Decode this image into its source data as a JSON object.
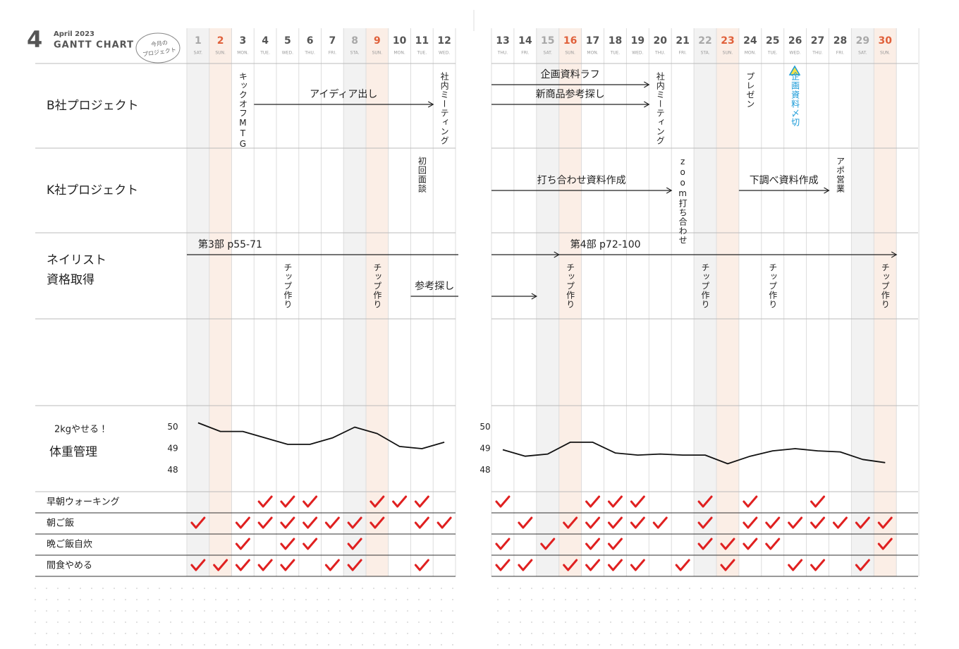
{
  "header": {
    "month": "4",
    "subtitle": "April 2023",
    "title": "GANTT CHART",
    "badge": [
      "今月の",
      "プロジェクト"
    ]
  },
  "days": [
    {
      "day": 1,
      "dow": "SAT.",
      "shade": "#f2f2f2",
      "color": "#a8a8a8"
    },
    {
      "day": 2,
      "dow": "SUN.",
      "shade": "#fbeee6",
      "color": "#e0603a"
    },
    {
      "day": 3,
      "dow": "MON."
    },
    {
      "day": 4,
      "dow": "TUE."
    },
    {
      "day": 5,
      "dow": "WED."
    },
    {
      "day": 6,
      "dow": "THU."
    },
    {
      "day": 7,
      "dow": "FRI."
    },
    {
      "day": 8,
      "dow": "STA.",
      "shade": "#f2f2f2",
      "color": "#a8a8a8"
    },
    {
      "day": 9,
      "dow": "SUN.",
      "shade": "#fbeee6",
      "color": "#e0603a"
    },
    {
      "day": 10,
      "dow": "MON."
    },
    {
      "day": 11,
      "dow": "TUE."
    },
    {
      "day": 12,
      "dow": "WED."
    },
    {
      "day": 13,
      "dow": "THU."
    },
    {
      "day": 14,
      "dow": "FRI."
    },
    {
      "day": 15,
      "dow": "SAT.",
      "shade": "#f2f2f2",
      "color": "#a8a8a8"
    },
    {
      "day": 16,
      "dow": "SUN.",
      "shade": "#fbeee6",
      "color": "#e0603a"
    },
    {
      "day": 17,
      "dow": "MON."
    },
    {
      "day": 18,
      "dow": "TUE."
    },
    {
      "day": 19,
      "dow": "WED."
    },
    {
      "day": 20,
      "dow": "THU."
    },
    {
      "day": 21,
      "dow": "FRI."
    },
    {
      "day": 22,
      "dow": "STA.",
      "shade": "#f2f2f2",
      "color": "#a8a8a8"
    },
    {
      "day": 23,
      "dow": "SUN.",
      "shade": "#fbeee6",
      "color": "#e0603a"
    },
    {
      "day": 24,
      "dow": "MON."
    },
    {
      "day": 25,
      "dow": "TUE."
    },
    {
      "day": 26,
      "dow": "WED."
    },
    {
      "day": 27,
      "dow": "THU."
    },
    {
      "day": 28,
      "dow": "FRI."
    },
    {
      "day": 29,
      "dow": "SAT.",
      "shade": "#f2f2f2",
      "color": "#a8a8a8"
    },
    {
      "day": 30,
      "dow": "SUN.",
      "shade": "#fbeee6",
      "color": "#e0603a"
    }
  ],
  "projects": [
    {
      "name": [
        "B社プロジェクト"
      ],
      "tasks": [
        {
          "text": "キックオフMTG",
          "day": 3
        },
        {
          "text": "アイディア出し",
          "from": 4,
          "to": 12
        },
        {
          "text": "社内ミーティング",
          "day": 12
        },
        {
          "text": "企画資料ラフ",
          "from": 13,
          "to": 20
        },
        {
          "text": "新商品参考探し",
          "from": 13,
          "to": 20
        },
        {
          "text": "社内ミーティング",
          "day": 20
        },
        {
          "text": "プレゼン",
          "day": 24
        },
        {
          "text": "企画資料〆切",
          "day": 26,
          "color": "#1a9bd8"
        }
      ]
    },
    {
      "name": [
        "K社プロジェクト"
      ],
      "tasks": [
        {
          "text": "初回面談",
          "day": 11
        },
        {
          "text": "打ち合わせ資料作成",
          "from": 13,
          "to": 21
        },
        {
          "text": "zoom打ち合わせ",
          "day": 21
        },
        {
          "text": "下調べ資料作成",
          "from": 24,
          "to": 28
        },
        {
          "text": "アポ営業",
          "day": 28
        }
      ]
    },
    {
      "name": [
        "ネイリスト",
        "資格取得"
      ],
      "tasks": [
        {
          "text": "第3部 p55-71",
          "from": 1,
          "to": 13,
          "arrow": false
        },
        {
          "text": "チップ作り",
          "day": 5
        },
        {
          "text": "チップ作り",
          "day": 9
        },
        {
          "text": "参考探し",
          "from": 11,
          "to": 13,
          "arrow": false
        },
        {
          "from": 13,
          "to": 16
        },
        {
          "text": "第4部 p72-100",
          "from": 16,
          "to": 31
        },
        {
          "from": 13,
          "to": 15
        },
        {
          "text": "チップ作り",
          "day": 16
        },
        {
          "text": "チップ作り",
          "day": 22
        },
        {
          "text": "チップ作り",
          "day": 25
        },
        {
          "text": "チップ作り",
          "day": 30
        }
      ]
    }
  ],
  "weight": {
    "goal": "2kgやせる！",
    "label": "体重管理",
    "ylim": [
      47,
      51
    ],
    "yticks": [
      50,
      49,
      48
    ],
    "values": [
      50.2,
      49.8,
      49.8,
      49.5,
      49.2,
      49.2,
      49.5,
      50.0,
      49.7,
      49.1,
      49.0,
      49.3,
      48.95,
      48.65,
      48.75,
      49.3,
      49.3,
      48.8,
      48.7,
      48.75,
      48.7,
      48.7,
      48.3,
      48.65,
      48.9,
      49.0,
      48.9,
      48.85,
      48.5,
      48.35
    ]
  },
  "habits": [
    {
      "name": "早朝ウォーキング",
      "days": [
        4,
        5,
        6,
        9,
        10,
        11,
        13,
        17,
        18,
        19,
        22,
        24,
        27
      ]
    },
    {
      "name": "朝ご飯",
      "days": [
        1,
        3,
        4,
        5,
        6,
        7,
        8,
        9,
        11,
        12,
        14,
        16,
        17,
        18,
        19,
        20,
        22,
        24,
        25,
        26,
        27,
        28,
        29,
        30
      ]
    },
    {
      "name": "晩ご飯自炊",
      "days": [
        3,
        5,
        6,
        8,
        13,
        15,
        17,
        18,
        22,
        23,
        24,
        25,
        30
      ]
    },
    {
      "name": "間食やめる",
      "days": [
        1,
        2,
        3,
        4,
        5,
        7,
        8,
        11,
        13,
        14,
        16,
        17,
        18,
        19,
        21,
        23,
        26,
        27,
        29
      ]
    }
  ],
  "check_color": "#e02020"
}
